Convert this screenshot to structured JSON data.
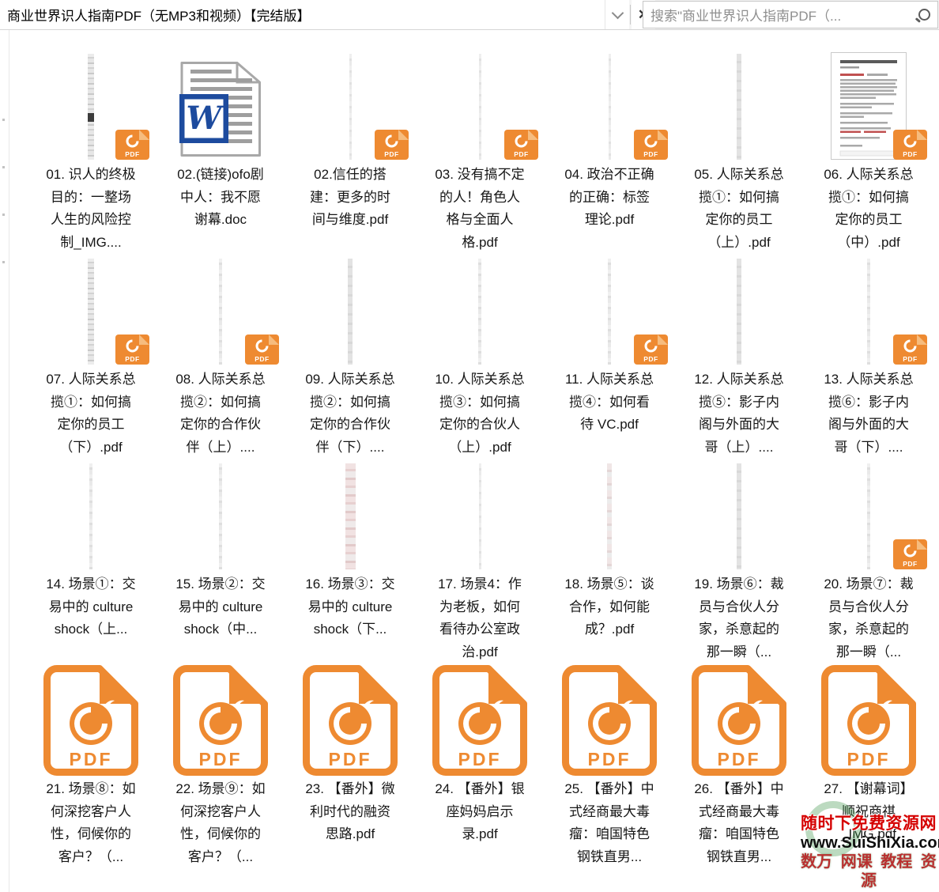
{
  "window": {
    "title": "商业世界识人指南PDF（无MP3和视频）【完结版】",
    "close_glyph": "✕",
    "search_placeholder": "搜索\"商业世界识人指南PDF（..."
  },
  "files": [
    {
      "name": "01. 识人的终极目的：一整场人生的风险控制_IMG....",
      "thumb": "strip-8-dark",
      "badge": true
    },
    {
      "name": "02.(链接)ofo剧中人：我不愿谢幕.doc",
      "thumb": "word",
      "badge": false
    },
    {
      "name": "02.信任的搭建：更多的时间与维度.pdf",
      "thumb": "strip-3",
      "badge": true
    },
    {
      "name": "03. 没有搞不定的人！角色人格与全面人格.pdf",
      "thumb": "strip-3",
      "badge": true
    },
    {
      "name": "04. 政治不正确的正确：标签理论.pdf",
      "thumb": "strip-3",
      "badge": true
    },
    {
      "name": "05. 人际关系总揽①：如何搞定你的员工（上）.pdf",
      "thumb": "strip-6",
      "badge": false
    },
    {
      "name": "06. 人际关系总揽①：如何搞定你的员工（中）.pdf",
      "thumb": "page",
      "badge": true
    },
    {
      "name": "07. 人际关系总揽①：如何搞定你的员工（下）.pdf",
      "thumb": "strip-8",
      "badge": true
    },
    {
      "name": "08. 人际关系总揽②：如何搞定你的合作伙伴（上）....",
      "thumb": "strip-4",
      "badge": true
    },
    {
      "name": "09. 人际关系总揽②：如何搞定你的合作伙伴（下）....",
      "thumb": "strip-6",
      "badge": false
    },
    {
      "name": "10. 人际关系总揽③：如何搞定你的合伙人（上）.pdf",
      "thumb": "strip-4",
      "badge": false
    },
    {
      "name": "11. 人际关系总揽④：如何看待 VC.pdf",
      "thumb": "strip-4",
      "badge": true
    },
    {
      "name": "12. 人际关系总揽⑤：影子内阁与外面的大哥（上）....",
      "thumb": "strip-6",
      "badge": false
    },
    {
      "name": "13. 人际关系总揽⑥：影子内阁与外面的大哥（下）....",
      "thumb": "strip-4",
      "badge": true
    },
    {
      "name": "14. 场景①：交易中的 culture shock（上...",
      "thumb": "strip-4",
      "badge": false
    },
    {
      "name": "15. 场景②：交易中的 culture shock（中...",
      "thumb": "strip-4",
      "badge": false
    },
    {
      "name": "16. 场景③：交易中的 culture shock（下...",
      "thumb": "strip-13-pink",
      "badge": false
    },
    {
      "name": "17. 场景4：作为老板，如何看待办公室政治.pdf",
      "thumb": "strip-3",
      "badge": false
    },
    {
      "name": "18. 场景⑤：谈合作，如何能成？.pdf",
      "thumb": "strip-6-pink",
      "badge": false
    },
    {
      "name": "19. 场景⑥：裁员与合伙人分家，杀意起的那一瞬（...",
      "thumb": "strip-6",
      "badge": false
    },
    {
      "name": "20. 场景⑦：裁员与合伙人分家，杀意起的那一瞬（...",
      "thumb": "strip-4",
      "badge": true
    },
    {
      "name": "21. 场景⑧：如何深挖客户人性，伺候你的客户？（...",
      "thumb": "bigpdf",
      "badge": false
    },
    {
      "name": "22. 场景⑨：如何深挖客户人性，伺候你的客户？（...",
      "thumb": "bigpdf",
      "badge": false
    },
    {
      "name": "23. 【番外】微利时代的融资思路.pdf",
      "thumb": "bigpdf",
      "badge": false
    },
    {
      "name": "24. 【番外】银座妈妈启示录.pdf",
      "thumb": "bigpdf",
      "badge": false
    },
    {
      "name": "25. 【番外】中式经商最大毒瘤：咱国特色钢铁直男...",
      "thumb": "bigpdf",
      "badge": false
    },
    {
      "name": "26. 【番外】中式经商最大毒瘤：咱国特色钢铁直男...",
      "thumb": "bigpdf",
      "badge": false
    },
    {
      "name": "27. 【谢幕词】顺祝商祺_IMG.pdf",
      "thumb": "bigpdf",
      "badge": false
    }
  ],
  "watermark": {
    "line1": "随时下免费资源网",
    "line2": "www.SuiShiXia.com",
    "line3": "数万 网课 教程 资源"
  },
  "colors": {
    "foxit_orange": "#EE8A31",
    "foxit_light": "#F6BC7E",
    "word_blue": "#1D4B9E",
    "wm_red": "#D50000",
    "wm_green": "#2E8B3A"
  }
}
